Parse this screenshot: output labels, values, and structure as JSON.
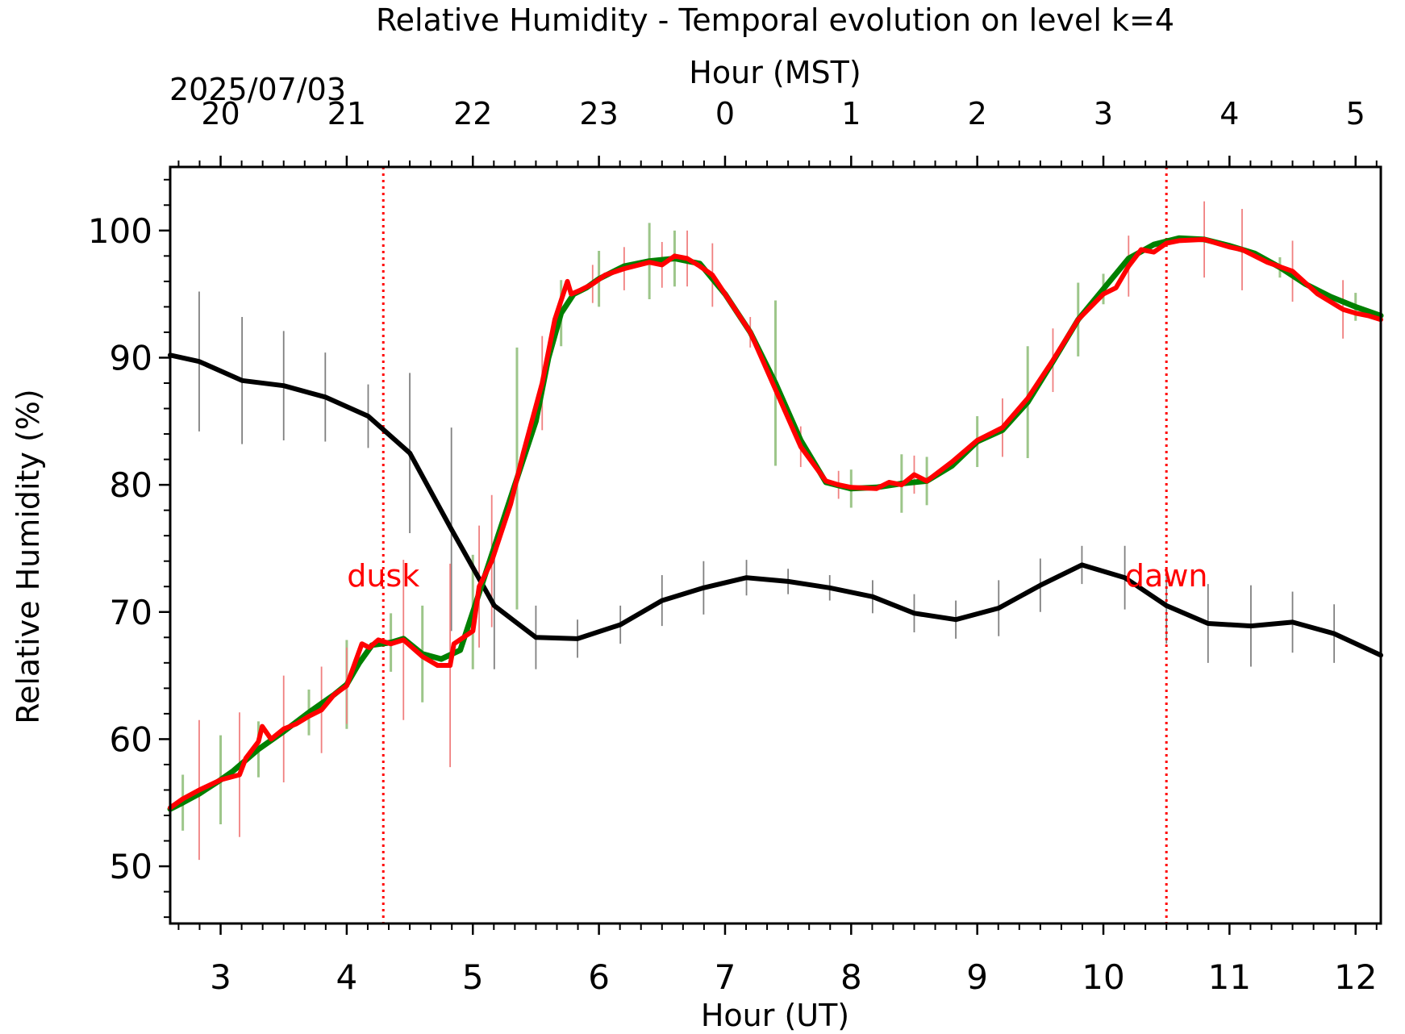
{
  "chart_data": {
    "type": "line",
    "title": "Relative Humidity - Temporal evolution on level k=4",
    "top_axis_label": "Hour (MST)",
    "date_label": "2025/07/03",
    "xlabel": "Hour (UT)",
    "ylabel": "Relative Humidity (%)",
    "xlim": [
      2.6,
      12.2
    ],
    "ylim": [
      45.5,
      105
    ],
    "x_ticks": [
      3,
      4,
      5,
      6,
      7,
      8,
      9,
      10,
      11,
      12
    ],
    "y_ticks": [
      50,
      60,
      70,
      80,
      90,
      100
    ],
    "top_ticks": [
      {
        "ut": 3,
        "label": "20"
      },
      {
        "ut": 4,
        "label": "21"
      },
      {
        "ut": 5,
        "label": "22"
      },
      {
        "ut": 6,
        "label": "23"
      },
      {
        "ut": 7,
        "label": "0"
      },
      {
        "ut": 8,
        "label": "1"
      },
      {
        "ut": 9,
        "label": "2"
      },
      {
        "ut": 10,
        "label": "3"
      },
      {
        "ut": 11,
        "label": "4"
      },
      {
        "ut": 12,
        "label": "5"
      }
    ],
    "annotations": [
      {
        "text": "dusk",
        "x": 4.29,
        "color": "#ff0000"
      },
      {
        "text": "dawn",
        "x": 10.5,
        "color": "#ff0000"
      }
    ],
    "series": [
      {
        "color": "#000000",
        "x": [
          2.6,
          2.83,
          3.17,
          3.5,
          3.83,
          4.17,
          4.5,
          4.83,
          5.17,
          5.5,
          5.83,
          6.17,
          6.5,
          6.83,
          7.17,
          7.5,
          7.83,
          8.17,
          8.5,
          8.83,
          9.17,
          9.5,
          9.83,
          10.17,
          10.5,
          10.83,
          11.17,
          11.5,
          11.83,
          12.2
        ],
        "y": [
          90.2,
          89.7,
          88.2,
          87.8,
          86.9,
          85.4,
          82.5,
          76.5,
          70.5,
          68.0,
          67.9,
          69.0,
          70.9,
          71.9,
          72.7,
          72.4,
          71.9,
          71.2,
          69.9,
          69.4,
          70.3,
          72.1,
          73.7,
          72.7,
          70.5,
          69.1,
          68.9,
          69.2,
          68.3,
          66.6
        ],
        "error": [
          0,
          5.5,
          5.0,
          4.3,
          3.5,
          2.5,
          6.3,
          8.0,
          5.0,
          2.5,
          1.5,
          1.5,
          2.0,
          2.1,
          1.4,
          1.0,
          1.0,
          1.3,
          1.5,
          1.5,
          2.2,
          2.1,
          1.5,
          2.5,
          3.0,
          3.1,
          3.2,
          2.4,
          2.3,
          2.6
        ],
        "error_color": "#808080"
      },
      {
        "color": "#008000",
        "x": [
          2.6,
          2.7,
          2.83,
          3.0,
          3.1,
          3.3,
          3.5,
          3.7,
          3.9,
          4.0,
          4.1,
          4.2,
          4.35,
          4.45,
          4.6,
          4.75,
          4.9,
          5.0,
          5.1,
          5.2,
          5.35,
          5.5,
          5.6,
          5.7,
          5.8,
          5.9,
          6.0,
          6.2,
          6.4,
          6.6,
          6.8,
          7.0,
          7.2,
          7.4,
          7.6,
          7.8,
          8.0,
          8.2,
          8.4,
          8.6,
          8.8,
          9.0,
          9.2,
          9.4,
          9.6,
          9.8,
          10.0,
          10.2,
          10.4,
          10.6,
          10.8,
          11.0,
          11.2,
          11.4,
          11.6,
          11.8,
          12.0,
          12.2
        ],
        "y": [
          54.5,
          55.0,
          55.7,
          56.8,
          57.5,
          59.2,
          60.6,
          62.1,
          63.5,
          64.3,
          66.0,
          67.4,
          67.6,
          67.9,
          66.7,
          66.3,
          67.0,
          70.0,
          73.0,
          76.0,
          80.5,
          85.0,
          90.0,
          93.5,
          95.0,
          95.5,
          96.2,
          97.2,
          97.6,
          97.8,
          97.4,
          95.0,
          92.0,
          88.0,
          83.5,
          80.2,
          79.7,
          79.8,
          80.1,
          80.3,
          81.5,
          83.4,
          84.3,
          86.5,
          89.7,
          93.0,
          95.4,
          97.8,
          98.9,
          99.4,
          99.3,
          98.8,
          98.2,
          97.1,
          95.8,
          94.8,
          94.0,
          93.3
        ],
        "error": [
          0,
          2.2,
          0,
          3.5,
          0,
          2.2,
          0,
          1.8,
          0,
          3.5,
          0,
          0,
          2.3,
          0,
          3.8,
          0,
          0,
          4.5,
          0,
          0,
          10.3,
          0,
          0,
          2.6,
          0,
          0,
          2.2,
          0,
          3.0,
          2.2,
          0,
          0,
          0,
          6.5,
          0,
          0,
          1.5,
          0,
          2.3,
          1.9,
          0,
          2.0,
          0,
          4.4,
          0,
          2.9,
          1.2,
          0,
          0,
          0,
          0,
          0,
          0,
          0.8,
          0,
          0,
          1.1,
          0
        ],
        "error_color": "#9dc68a"
      },
      {
        "color": "#ff0000",
        "x": [
          2.6,
          2.7,
          2.83,
          3.0,
          3.15,
          3.2,
          3.3,
          3.33,
          3.4,
          3.5,
          3.6,
          3.7,
          3.8,
          3.9,
          4.0,
          4.12,
          4.18,
          4.25,
          4.35,
          4.45,
          4.6,
          4.72,
          4.82,
          4.85,
          5.0,
          5.05,
          5.15,
          5.3,
          5.4,
          5.55,
          5.65,
          5.75,
          5.78,
          5.85,
          5.95,
          6.05,
          6.2,
          6.4,
          6.5,
          6.6,
          6.7,
          6.8,
          6.9,
          7.0,
          7.2,
          7.4,
          7.6,
          7.8,
          7.9,
          8.0,
          8.2,
          8.3,
          8.4,
          8.5,
          8.6,
          8.8,
          9.0,
          9.2,
          9.4,
          9.6,
          9.8,
          10.0,
          10.1,
          10.2,
          10.3,
          10.4,
          10.5,
          10.6,
          10.8,
          11.0,
          11.1,
          11.3,
          11.5,
          11.7,
          11.9,
          12.0,
          12.1,
          12.2
        ],
        "y": [
          54.6,
          55.3,
          56.0,
          56.8,
          57.2,
          58.5,
          59.8,
          61.0,
          60.0,
          60.8,
          61.2,
          61.8,
          62.3,
          63.5,
          64.2,
          67.5,
          67.2,
          67.8,
          67.5,
          67.8,
          66.5,
          65.8,
          65.8,
          67.5,
          68.5,
          72.0,
          74.0,
          78.5,
          82.5,
          88.0,
          93.0,
          96.0,
          95.0,
          95.3,
          95.8,
          96.5,
          97.0,
          97.5,
          97.3,
          98.0,
          97.8,
          97.2,
          96.5,
          95.0,
          92.0,
          87.5,
          83.0,
          80.3,
          80.0,
          79.8,
          79.7,
          80.2,
          80.0,
          80.8,
          80.3,
          81.8,
          83.5,
          84.5,
          86.8,
          89.8,
          93.0,
          95.0,
          95.5,
          97.2,
          98.5,
          98.3,
          99.0,
          99.2,
          99.3,
          98.7,
          98.5,
          97.5,
          96.8,
          95.0,
          93.8,
          93.5,
          93.3,
          93.0
        ],
        "error": [
          0,
          0,
          5.5,
          0,
          4.9,
          0,
          0,
          0,
          0,
          4.2,
          0,
          0,
          3.4,
          0,
          3.0,
          0,
          0,
          0,
          0,
          6.3,
          0,
          0,
          8.0,
          0,
          0,
          4.8,
          5.2,
          0,
          0,
          3.7,
          0,
          0,
          0,
          0,
          1.5,
          0,
          1.7,
          0,
          1.8,
          0,
          2.2,
          0,
          2.5,
          0,
          1.2,
          0,
          1.6,
          0,
          1.1,
          0,
          0,
          0,
          0,
          1.5,
          0,
          0,
          0,
          2.3,
          0,
          2.5,
          0,
          0,
          0,
          2.4,
          0,
          0,
          0,
          0,
          3.0,
          0,
          3.2,
          0,
          2.4,
          0,
          2.3,
          0,
          0,
          2.6
        ],
        "error_color": "#f08080"
      }
    ]
  }
}
